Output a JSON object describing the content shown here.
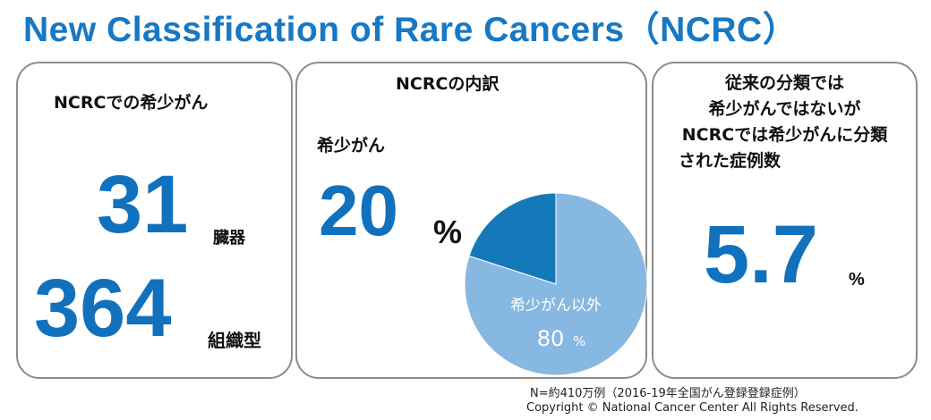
{
  "title": "New Classification of Rare Cancers（NCRC）",
  "panel1": {
    "heading": "NCRCでの希少がん",
    "organs_value": "31",
    "organs_unit": "臓器",
    "tissue_value": "364",
    "tissue_unit": "組織型"
  },
  "panel2": {
    "heading": "NCRCの内訳",
    "rare_label": "希少がん",
    "rare_value": "20",
    "rare_unit": "%",
    "other_label": "希少がん以外",
    "other_value": "80",
    "other_unit": "%"
  },
  "panel3": {
    "heading_lines": [
      "従来の分類では",
      "希少がんではないが",
      "NCRCでは希少がんに分類",
      "された症例数"
    ],
    "value": "5.7",
    "unit": "%"
  },
  "footer": {
    "note": "N=約410万例（2016-19年全国がん登録登録症例）",
    "copyright": "Copyright © National Cancer Center All Rights Reserved."
  },
  "colors": {
    "title": "#1778c4",
    "big_number": "#1271bd",
    "slice_rare": "#1479b9",
    "slice_other": "#86b8e2"
  },
  "chart_data": {
    "type": "pie",
    "categories": [
      "希少がん",
      "希少がん以外"
    ],
    "values": [
      20,
      80
    ],
    "title": "NCRCの内訳"
  }
}
